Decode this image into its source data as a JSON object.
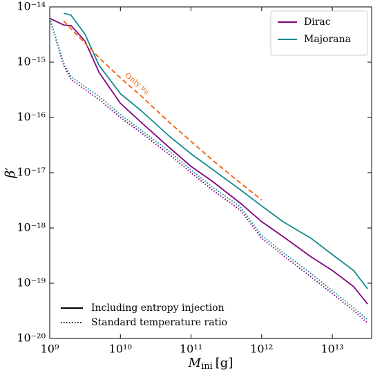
{
  "chart_data": {
    "type": "line",
    "xlabel": {
      "symbol": "M",
      "subscript": "ini",
      "unit": "[g]"
    },
    "ylabel": "β′",
    "xscale": "log",
    "yscale": "log",
    "xlim": [
      1000000000.0,
      36000000000000.0
    ],
    "ylim": [
      1e-20,
      1e-14
    ],
    "xticks": [
      {
        "value": 1000000000.0,
        "label": "10⁹"
      },
      {
        "value": 10000000000.0,
        "label": "10¹⁰"
      },
      {
        "value": 100000000000.0,
        "label": "10¹¹"
      },
      {
        "value": 1000000000000.0,
        "label": "10¹²"
      },
      {
        "value": 10000000000000.0,
        "label": "10¹³"
      }
    ],
    "yticks": [
      {
        "value": 1e-20,
        "label": "10⁻²⁰"
      },
      {
        "value": 1e-19,
        "label": "10⁻¹⁹"
      },
      {
        "value": 1e-18,
        "label": "10⁻¹⁸"
      },
      {
        "value": 1e-17,
        "label": "10⁻¹⁷"
      },
      {
        "value": 1e-16,
        "label": "10⁻¹⁶"
      },
      {
        "value": 1e-15,
        "label": "10⁻¹⁵"
      },
      {
        "value": 1e-14,
        "label": "10⁻¹⁴"
      }
    ],
    "x": [
      1000000000.0,
      1580000000.0,
      2000000000.0,
      3160000000.0,
      5000000000.0,
      10000000000.0,
      20000000000.0,
      50000000000.0,
      100000000000.0,
      200000000000.0,
      500000000000.0,
      1000000000000.0,
      2000000000000.0,
      5000000000000.0,
      10000000000000.0,
      20000000000000.0,
      31600000000000.0
    ],
    "series": [
      {
        "name": "Dirac",
        "color": "#800080",
        "linestyle": "solid",
        "values": [
          6.2e-15,
          4.7e-15,
          4.6e-15,
          2.4e-15,
          6.5e-16,
          1.8e-16,
          8e-17,
          2.8e-17,
          1.3e-17,
          7e-18,
          2.8e-18,
          1.3e-18,
          7e-19,
          3e-19,
          1.7e-19,
          8.7e-20,
          4.2e-20
        ]
      },
      {
        "name": "Majorana",
        "color": "#108a8a",
        "linestyle": "solid",
        "values": [
          null,
          7.7e-15,
          7.1e-15,
          3.2e-15,
          8.7e-16,
          2.7e-16,
          1.3e-16,
          4.5e-17,
          2.2e-17,
          1.15e-17,
          4.9e-18,
          2.5e-18,
          1.3e-18,
          6.5e-19,
          3.3e-19,
          1.7e-19,
          7.9e-20
        ]
      },
      {
        "name": "Dirac",
        "color": "#800080",
        "linestyle": "dotted",
        "values": [
          6.2e-15,
          8.6e-16,
          4.9e-16,
          3.2e-16,
          2.1e-16,
          1e-16,
          5.2e-17,
          2.1e-17,
          1e-17,
          4.9e-18,
          2.1e-18,
          6.5e-19,
          3.2e-19,
          1.3e-19,
          6.5e-20,
          3.2e-20,
          1.9e-20
        ]
      },
      {
        "name": "Majorana",
        "color": "#108a8a",
        "linestyle": "dotted",
        "values": [
          6.2e-15,
          9.6e-16,
          5.5e-16,
          3.6e-16,
          2.4e-16,
          1.12e-16,
          5.8e-17,
          2.4e-17,
          1.12e-17,
          5.5e-18,
          2.4e-18,
          7.3e-19,
          3.6e-19,
          1.5e-19,
          7.3e-20,
          3.6e-20,
          2.2e-20
        ]
      },
      {
        "color": "#f26a1b",
        "linestyle": "dashed",
        "values": [
          null,
          5.6e-15,
          4e-15,
          2.2e-15,
          1.2e-15,
          5.2e-16,
          2.4e-16,
          8e-17,
          3.7e-17,
          1.7e-17,
          6.5e-18,
          3.2e-18,
          null,
          null,
          null,
          null,
          null
        ]
      }
    ],
    "annotation": {
      "text": "Only ν",
      "subscript": "R",
      "color": "#f26a1b"
    },
    "legend": {
      "position": "upper right",
      "entries": [
        0,
        1
      ]
    },
    "style_legend": {
      "position": "lower left",
      "entries": [
        {
          "label": "Including entropy injection",
          "linestyle": "solid"
        },
        {
          "label": "Standard temperature ratio",
          "linestyle": "dotted"
        }
      ]
    }
  }
}
